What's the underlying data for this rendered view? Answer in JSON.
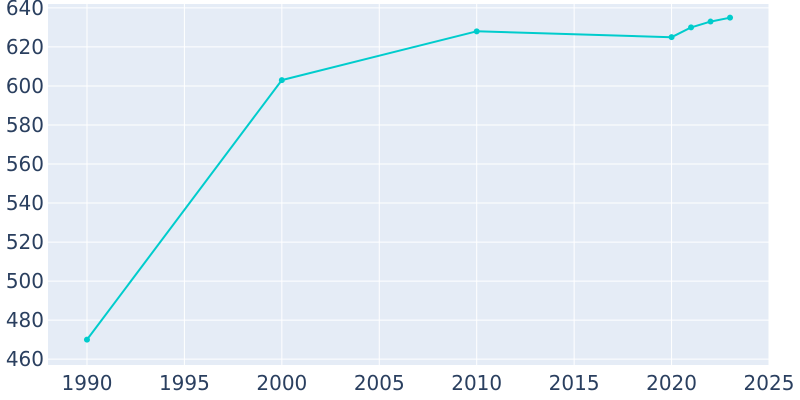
{
  "chart_data": {
    "type": "line",
    "title": "",
    "xlabel": "",
    "ylabel": "",
    "xlim": [
      1988,
      2025
    ],
    "ylim": [
      457,
      642
    ],
    "x_ticks": [
      1990,
      1995,
      2000,
      2005,
      2010,
      2015,
      2020,
      2025
    ],
    "y_ticks": [
      460,
      480,
      500,
      520,
      540,
      560,
      580,
      600,
      620,
      640
    ],
    "x_tick_labels": [
      "1990",
      "1995",
      "2000",
      "2005",
      "2010",
      "2015",
      "2020",
      "2025"
    ],
    "y_tick_labels": [
      "460",
      "480",
      "500",
      "520",
      "540",
      "560",
      "580",
      "600",
      "620",
      "640"
    ],
    "grid": true,
    "legend": "none",
    "series": [
      {
        "x": [
          1990,
          2000,
          2010,
          2020,
          2021,
          2022,
          2023
        ],
        "y": [
          470,
          603,
          628,
          625,
          630,
          633,
          635
        ]
      }
    ],
    "colors": {
      "line": "#00cccc",
      "plot_background": "#e5ecf6",
      "grid": "#ffffff",
      "tick_text": "#2a3f5f"
    }
  }
}
